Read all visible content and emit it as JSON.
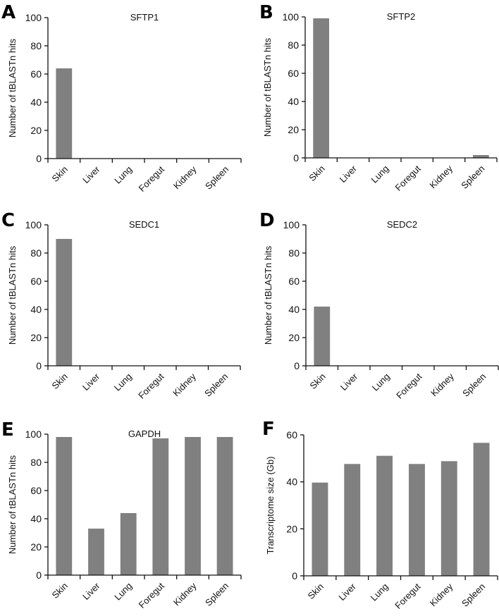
{
  "figure": {
    "bar_color": "#808080",
    "axis_color": "#111111"
  },
  "chart_data": [
    {
      "panel": "A",
      "type": "bar",
      "title": "SFTP1",
      "xlabel": "",
      "ylabel": "Number of tBLASTn hits",
      "categories": [
        "Skin",
        "Liver",
        "Lung",
        "Foregut",
        "Kidney",
        "Spleen"
      ],
      "values": [
        64,
        0,
        0,
        0,
        0,
        0
      ],
      "ylim": [
        0,
        100
      ],
      "yticks": [
        0,
        20,
        40,
        60,
        80,
        100
      ],
      "grid": false
    },
    {
      "panel": "B",
      "type": "bar",
      "title": "SFTP2",
      "xlabel": "",
      "ylabel": "Number of tBLASTn hits",
      "categories": [
        "Skin",
        "Liver",
        "Lung",
        "Foregut",
        "Kidney",
        "Spleen"
      ],
      "values": [
        99,
        0,
        0,
        0,
        0,
        2
      ],
      "ylim": [
        0,
        100
      ],
      "yticks": [
        0,
        20,
        40,
        60,
        80,
        100
      ],
      "grid": false
    },
    {
      "panel": "C",
      "type": "bar",
      "title": "SEDC1",
      "xlabel": "",
      "ylabel": "Number of tBLASTn hits",
      "categories": [
        "Skin",
        "Liver",
        "Lung",
        "Foregut",
        "Kidney",
        "Spleen"
      ],
      "values": [
        90,
        0,
        0,
        0,
        0,
        0
      ],
      "ylim": [
        0,
        100
      ],
      "yticks": [
        0,
        20,
        40,
        60,
        80,
        100
      ],
      "grid": false
    },
    {
      "panel": "D",
      "type": "bar",
      "title": "SEDC2",
      "xlabel": "",
      "ylabel": "Number of tBLASTn hits",
      "categories": [
        "Skin",
        "Liver",
        "Lung",
        "Foregut",
        "Kidney",
        "Spleen"
      ],
      "values": [
        42,
        0,
        0,
        0,
        0,
        0
      ],
      "ylim": [
        0,
        100
      ],
      "yticks": [
        0,
        20,
        40,
        60,
        80,
        100
      ],
      "grid": false
    },
    {
      "panel": "E",
      "type": "bar",
      "title": "GAPDH",
      "xlabel": "",
      "ylabel": "Number of tBLASTn hits",
      "categories": [
        "Skin",
        "Liver",
        "Lung",
        "Foregut",
        "Kidney",
        "Spleen"
      ],
      "values": [
        98,
        33,
        44,
        97,
        98,
        98
      ],
      "ylim": [
        0,
        100
      ],
      "yticks": [
        0,
        20,
        40,
        60,
        80,
        100
      ],
      "grid": false
    },
    {
      "panel": "F",
      "type": "bar",
      "title": "",
      "xlabel": "",
      "ylabel": "Transcriptome size (Gb)",
      "categories": [
        "Skin",
        "Liver",
        "Lung",
        "Foregut",
        "Kidney",
        "Spleen"
      ],
      "values": [
        39.7,
        47.6,
        51.1,
        47.6,
        48.8,
        56.6
      ],
      "ylim": [
        0,
        60
      ],
      "yticks": [
        0,
        20,
        40,
        60
      ],
      "grid": false
    }
  ]
}
